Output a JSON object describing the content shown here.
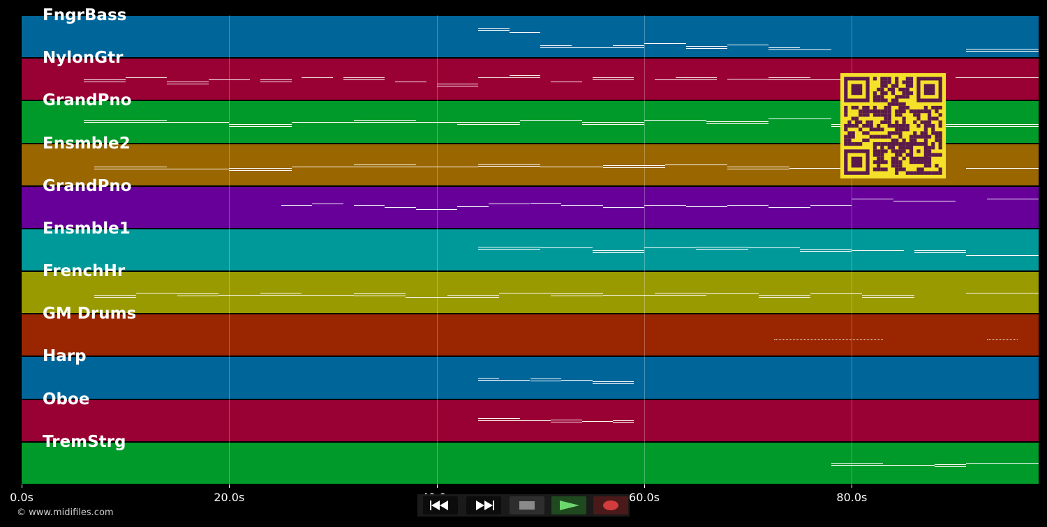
{
  "colors": {
    "background": "#000000",
    "note": "#ffffff",
    "qr_light": "#f5e12a",
    "qr_dark": "#5a1a4a"
  },
  "tracks": [
    {
      "name": "FngrBass",
      "color": "#00669a"
    },
    {
      "name": "NylonGtr",
      "color": "#990033"
    },
    {
      "name": "GrandPno",
      "color": "#009a2a"
    },
    {
      "name": "Ensmble2",
      "color": "#996600"
    },
    {
      "name": "GrandPno",
      "color": "#660099"
    },
    {
      "name": "Ensmble1",
      "color": "#009999"
    },
    {
      "name": "FrenchHr",
      "color": "#999900"
    },
    {
      "name": "GM Drums",
      "color": "#992600"
    },
    {
      "name": "Harp",
      "color": "#00669a"
    },
    {
      "name": "Oboe",
      "color": "#990033"
    },
    {
      "name": "TremStrg",
      "color": "#009a2a"
    }
  ],
  "x_axis": {
    "ticks": [
      {
        "value": 0,
        "label": "0.0s"
      },
      {
        "value": 20,
        "label": "20.0s"
      },
      {
        "value": 40,
        "label": "40.0s"
      },
      {
        "value": 60,
        "label": "60.0s"
      },
      {
        "value": 80,
        "label": "80.0s"
      }
    ],
    "range": [
      0,
      98
    ]
  },
  "notes": [
    {
      "track": 0,
      "segments": [
        [
          44,
          47,
          0.3
        ],
        [
          47,
          50,
          0.4
        ],
        [
          50,
          53,
          0.7
        ],
        [
          53,
          57,
          0.75
        ],
        [
          57,
          60,
          0.7
        ],
        [
          60,
          64,
          0.65
        ],
        [
          64,
          68,
          0.72
        ],
        [
          68,
          72,
          0.68
        ],
        [
          72,
          75,
          0.76
        ],
        [
          75,
          78,
          0.8
        ],
        [
          91,
          98,
          0.78
        ]
      ]
    },
    {
      "track": 1,
      "segments": [
        [
          6,
          10,
          0.5
        ],
        [
          10,
          14,
          0.45
        ],
        [
          14,
          18,
          0.55
        ],
        [
          18,
          22,
          0.5
        ],
        [
          23,
          26,
          0.5
        ],
        [
          27,
          30,
          0.45
        ],
        [
          31,
          35,
          0.45
        ],
        [
          36,
          39,
          0.55
        ],
        [
          40,
          44,
          0.6
        ],
        [
          44,
          47,
          0.45
        ],
        [
          47,
          50,
          0.4
        ],
        [
          51,
          54,
          0.55
        ],
        [
          55,
          59,
          0.45
        ],
        [
          61,
          63,
          0.5
        ],
        [
          63,
          67,
          0.45
        ],
        [
          68,
          72,
          0.48
        ],
        [
          72,
          76,
          0.45
        ],
        [
          76,
          79,
          0.5
        ],
        [
          80,
          84,
          0.45
        ],
        [
          90,
          98,
          0.45
        ]
      ]
    },
    {
      "track": 2,
      "segments": [
        [
          6,
          14,
          0.45
        ],
        [
          14,
          20,
          0.5
        ],
        [
          20,
          26,
          0.55
        ],
        [
          26,
          32,
          0.5
        ],
        [
          32,
          38,
          0.45
        ],
        [
          38,
          42,
          0.5
        ],
        [
          42,
          48,
          0.5
        ],
        [
          48,
          54,
          0.45
        ],
        [
          54,
          60,
          0.5
        ],
        [
          60,
          66,
          0.45
        ],
        [
          66,
          72,
          0.48
        ],
        [
          72,
          78,
          0.42
        ],
        [
          78,
          82,
          0.55
        ],
        [
          82,
          88,
          0.6
        ],
        [
          88,
          98,
          0.55
        ]
      ]
    },
    {
      "track": 3,
      "segments": [
        [
          7,
          14,
          0.55
        ],
        [
          14,
          20,
          0.6
        ],
        [
          20,
          26,
          0.58
        ],
        [
          26,
          32,
          0.55
        ],
        [
          32,
          38,
          0.5
        ],
        [
          38,
          44,
          0.55
        ],
        [
          44,
          50,
          0.48
        ],
        [
          50,
          56,
          0.55
        ],
        [
          56,
          62,
          0.52
        ],
        [
          62,
          68,
          0.5
        ],
        [
          68,
          74,
          0.55
        ],
        [
          74,
          80,
          0.58
        ],
        [
          80,
          86,
          0.56
        ],
        [
          91,
          98,
          0.58
        ]
      ]
    },
    {
      "track": 4,
      "segments": [
        [
          25,
          28,
          0.45
        ],
        [
          28,
          31,
          0.42
        ],
        [
          32,
          35,
          0.45
        ],
        [
          35,
          38,
          0.5
        ],
        [
          38,
          42,
          0.55
        ],
        [
          42,
          45,
          0.48
        ],
        [
          45,
          49,
          0.42
        ],
        [
          49,
          52,
          0.4
        ],
        [
          52,
          56,
          0.45
        ],
        [
          56,
          60,
          0.5
        ],
        [
          60,
          64,
          0.45
        ],
        [
          64,
          68,
          0.48
        ],
        [
          68,
          72,
          0.45
        ],
        [
          72,
          76,
          0.5
        ],
        [
          76,
          80,
          0.45
        ],
        [
          80,
          84,
          0.3
        ],
        [
          84,
          90,
          0.35
        ],
        [
          93,
          98,
          0.3
        ]
      ]
    },
    {
      "track": 5,
      "segments": [
        [
          44,
          50,
          0.42
        ],
        [
          50,
          55,
          0.45
        ],
        [
          55,
          60,
          0.5
        ],
        [
          60,
          65,
          0.45
        ],
        [
          65,
          70,
          0.42
        ],
        [
          70,
          75,
          0.45
        ],
        [
          75,
          80,
          0.48
        ],
        [
          80,
          85,
          0.5
        ],
        [
          86,
          91,
          0.5
        ],
        [
          91,
          98,
          0.62
        ]
      ]
    },
    {
      "track": 6,
      "segments": [
        [
          7,
          11,
          0.55
        ],
        [
          11,
          15,
          0.5
        ],
        [
          15,
          19,
          0.52
        ],
        [
          19,
          23,
          0.55
        ],
        [
          23,
          27,
          0.5
        ],
        [
          27,
          32,
          0.55
        ],
        [
          32,
          37,
          0.52
        ],
        [
          37,
          41,
          0.6
        ],
        [
          41,
          46,
          0.55
        ],
        [
          46,
          51,
          0.5
        ],
        [
          51,
          56,
          0.52
        ],
        [
          56,
          61,
          0.55
        ],
        [
          61,
          66,
          0.5
        ],
        [
          66,
          71,
          0.52
        ],
        [
          71,
          76,
          0.55
        ],
        [
          76,
          81,
          0.52
        ],
        [
          81,
          86,
          0.55
        ],
        [
          91,
          98,
          0.5
        ]
      ]
    },
    {
      "track": 7,
      "segments": [
        [
          72.5,
          83,
          0.6
        ],
        [
          93,
          96,
          0.6
        ]
      ]
    },
    {
      "track": 8,
      "segments": [
        [
          44,
          46,
          0.5
        ],
        [
          46,
          49,
          0.55
        ],
        [
          49,
          52,
          0.52
        ],
        [
          52,
          55,
          0.55
        ],
        [
          55,
          59,
          0.58
        ]
      ]
    },
    {
      "track": 9,
      "segments": [
        [
          44,
          48,
          0.45
        ],
        [
          48,
          51,
          0.5
        ],
        [
          51,
          54,
          0.48
        ],
        [
          54,
          57,
          0.52
        ],
        [
          57,
          59,
          0.5
        ]
      ]
    },
    {
      "track": 10,
      "segments": [
        [
          78,
          83,
          0.5
        ],
        [
          83,
          88,
          0.55
        ],
        [
          88,
          91,
          0.52
        ],
        [
          91,
          98,
          0.5
        ]
      ]
    }
  ],
  "transport": {
    "buttons": [
      {
        "name": "rewind",
        "color": "#ffffff"
      },
      {
        "name": "fast-forward",
        "color": "#ffffff"
      },
      {
        "name": "stop",
        "color": "#888888"
      },
      {
        "name": "play",
        "color": "#6ed66e"
      },
      {
        "name": "record",
        "color": "#d23c3c"
      }
    ]
  },
  "footer": {
    "credit": "© www.midifiles.com"
  }
}
